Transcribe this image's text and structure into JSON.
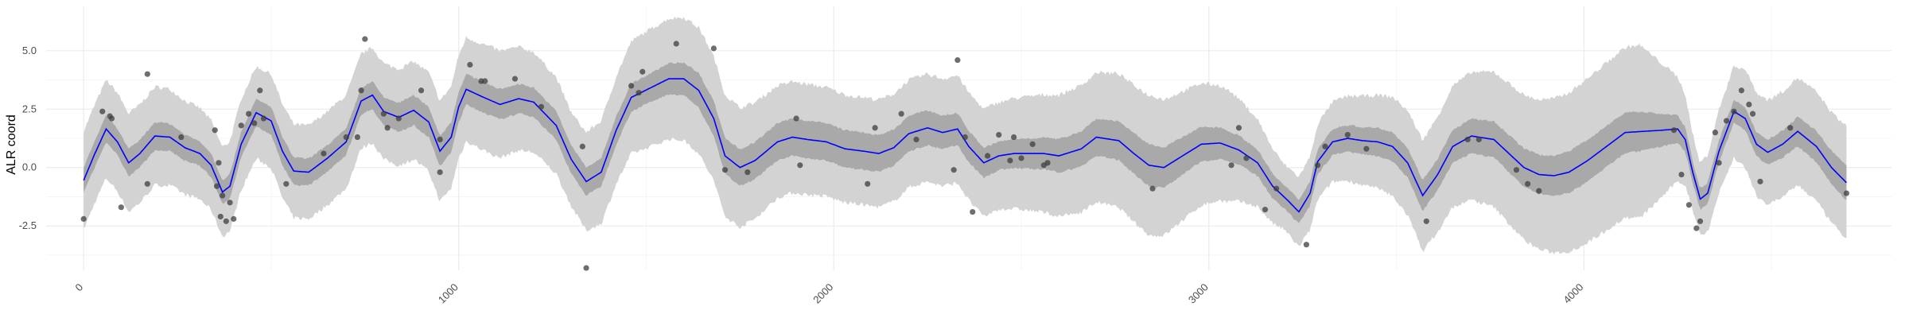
{
  "chart_data": {
    "type": "scatter",
    "title": "",
    "xlabel": "",
    "ylabel": "ALR coord",
    "xlim": [
      -100,
      4820
    ],
    "ylim": [
      -4.4,
      6.9
    ],
    "x_ticks": [
      0,
      1000,
      2000,
      3000,
      4000
    ],
    "x_tick_labels": [
      "0",
      "1000",
      "2000",
      "3000",
      "4000"
    ],
    "y_ticks": [
      -2.5,
      0.0,
      2.5,
      5.0
    ],
    "y_tick_labels": [
      "-2.5",
      "0.0",
      "2.5",
      "5.0"
    ],
    "grid": true,
    "legend": "none",
    "colors": {
      "points": "#3d3d3d",
      "mean_line": "#0000ff",
      "inner_band": "#a9a9a9",
      "outer_band": "#d3d3d3",
      "grid_major": "#ebebeb",
      "grid_minor": "#f5f5f5"
    },
    "points": [
      {
        "x": 0,
        "y": -2.2
      },
      {
        "x": 50,
        "y": 2.4
      },
      {
        "x": 70,
        "y": 2.2
      },
      {
        "x": 75,
        "y": 2.1
      },
      {
        "x": 100,
        "y": -1.7
      },
      {
        "x": 170,
        "y": 4.0
      },
      {
        "x": 170,
        "y": -0.7
      },
      {
        "x": 260,
        "y": 1.3
      },
      {
        "x": 350,
        "y": 1.6
      },
      {
        "x": 355,
        "y": -0.8
      },
      {
        "x": 360,
        "y": 0.2
      },
      {
        "x": 365,
        "y": -2.1
      },
      {
        "x": 370,
        "y": -1.2
      },
      {
        "x": 380,
        "y": -2.3
      },
      {
        "x": 390,
        "y": -1.5
      },
      {
        "x": 400,
        "y": -2.2
      },
      {
        "x": 420,
        "y": 1.8
      },
      {
        "x": 440,
        "y": 2.3
      },
      {
        "x": 455,
        "y": 1.9
      },
      {
        "x": 470,
        "y": 3.3
      },
      {
        "x": 480,
        "y": 2.1
      },
      {
        "x": 540,
        "y": -0.7
      },
      {
        "x": 640,
        "y": 0.6
      },
      {
        "x": 700,
        "y": 1.3
      },
      {
        "x": 730,
        "y": 1.3
      },
      {
        "x": 740,
        "y": 3.3
      },
      {
        "x": 750,
        "y": 5.5
      },
      {
        "x": 800,
        "y": 2.3
      },
      {
        "x": 810,
        "y": 1.7
      },
      {
        "x": 840,
        "y": 2.1
      },
      {
        "x": 900,
        "y": 3.3
      },
      {
        "x": 950,
        "y": 1.2
      },
      {
        "x": 950,
        "y": -0.2
      },
      {
        "x": 1030,
        "y": 4.4
      },
      {
        "x": 1060,
        "y": 3.7
      },
      {
        "x": 1070,
        "y": 3.7
      },
      {
        "x": 1150,
        "y": 3.8
      },
      {
        "x": 1220,
        "y": 2.6
      },
      {
        "x": 1330,
        "y": 0.9
      },
      {
        "x": 1340,
        "y": -4.3
      },
      {
        "x": 1460,
        "y": 3.5
      },
      {
        "x": 1480,
        "y": 3.2
      },
      {
        "x": 1490,
        "y": 4.1
      },
      {
        "x": 1580,
        "y": 5.3
      },
      {
        "x": 1680,
        "y": 5.1
      },
      {
        "x": 1710,
        "y": -0.1
      },
      {
        "x": 1770,
        "y": -0.2
      },
      {
        "x": 1900,
        "y": 2.1
      },
      {
        "x": 1910,
        "y": 0.1
      },
      {
        "x": 2090,
        "y": -0.7
      },
      {
        "x": 2110,
        "y": 1.7
      },
      {
        "x": 2180,
        "y": 2.3
      },
      {
        "x": 2220,
        "y": 1.2
      },
      {
        "x": 2320,
        "y": -0.1
      },
      {
        "x": 2330,
        "y": 4.6
      },
      {
        "x": 2350,
        "y": 1.3
      },
      {
        "x": 2370,
        "y": -1.9
      },
      {
        "x": 2410,
        "y": 0.5
      },
      {
        "x": 2440,
        "y": 1.4
      },
      {
        "x": 2470,
        "y": 0.3
      },
      {
        "x": 2480,
        "y": 1.3
      },
      {
        "x": 2500,
        "y": 0.4
      },
      {
        "x": 2530,
        "y": 1.0
      },
      {
        "x": 2560,
        "y": 0.1
      },
      {
        "x": 2570,
        "y": 0.2
      },
      {
        "x": 2850,
        "y": -0.9
      },
      {
        "x": 3060,
        "y": 0.1
      },
      {
        "x": 3080,
        "y": 1.7
      },
      {
        "x": 3100,
        "y": 0.4
      },
      {
        "x": 3150,
        "y": -1.8
      },
      {
        "x": 3180,
        "y": -0.9
      },
      {
        "x": 3260,
        "y": -3.3
      },
      {
        "x": 3290,
        "y": 0.1
      },
      {
        "x": 3310,
        "y": 0.9
      },
      {
        "x": 3370,
        "y": 1.4
      },
      {
        "x": 3420,
        "y": 0.8
      },
      {
        "x": 3580,
        "y": -2.3
      },
      {
        "x": 3690,
        "y": 1.2
      },
      {
        "x": 3720,
        "y": 1.2
      },
      {
        "x": 3820,
        "y": -0.1
      },
      {
        "x": 3850,
        "y": -0.7
      },
      {
        "x": 3880,
        "y": -1.0
      },
      {
        "x": 4240,
        "y": 1.6
      },
      {
        "x": 4260,
        "y": -0.3
      },
      {
        "x": 4280,
        "y": -1.6
      },
      {
        "x": 4300,
        "y": -2.6
      },
      {
        "x": 4310,
        "y": -2.3
      },
      {
        "x": 4350,
        "y": 1.5
      },
      {
        "x": 4360,
        "y": 0.2
      },
      {
        "x": 4380,
        "y": 2.0
      },
      {
        "x": 4400,
        "y": 2.4
      },
      {
        "x": 4420,
        "y": 3.3
      },
      {
        "x": 4440,
        "y": 2.7
      },
      {
        "x": 4450,
        "y": 2.3
      },
      {
        "x": 4470,
        "y": -0.6
      },
      {
        "x": 4550,
        "y": 1.7
      },
      {
        "x": 4700,
        "y": -1.1
      }
    ],
    "mean_curve": [
      [
        0,
        -0.55
      ],
      [
        30,
        0.6
      ],
      [
        60,
        1.65
      ],
      [
        90,
        1.1
      ],
      [
        120,
        0.2
      ],
      [
        150,
        0.6
      ],
      [
        190,
        1.35
      ],
      [
        230,
        1.3
      ],
      [
        270,
        0.85
      ],
      [
        310,
        0.6
      ],
      [
        340,
        0.1
      ],
      [
        370,
        -1.05
      ],
      [
        390,
        -0.8
      ],
      [
        420,
        1.0
      ],
      [
        460,
        2.35
      ],
      [
        500,
        2.0
      ],
      [
        530,
        0.7
      ],
      [
        560,
        -0.15
      ],
      [
        600,
        -0.2
      ],
      [
        650,
        0.4
      ],
      [
        700,
        1.1
      ],
      [
        740,
        2.85
      ],
      [
        770,
        3.1
      ],
      [
        800,
        2.4
      ],
      [
        840,
        2.15
      ],
      [
        880,
        2.45
      ],
      [
        920,
        1.95
      ],
      [
        950,
        0.7
      ],
      [
        980,
        1.3
      ],
      [
        1000,
        2.6
      ],
      [
        1020,
        3.35
      ],
      [
        1060,
        3.05
      ],
      [
        1110,
        2.7
      ],
      [
        1160,
        2.95
      ],
      [
        1200,
        2.8
      ],
      [
        1260,
        1.8
      ],
      [
        1300,
        0.35
      ],
      [
        1340,
        -0.6
      ],
      [
        1380,
        -0.2
      ],
      [
        1420,
        1.6
      ],
      [
        1460,
        3.0
      ],
      [
        1510,
        3.4
      ],
      [
        1560,
        3.8
      ],
      [
        1600,
        3.8
      ],
      [
        1640,
        3.3
      ],
      [
        1680,
        2.1
      ],
      [
        1710,
        0.5
      ],
      [
        1750,
        0.0
      ],
      [
        1790,
        0.3
      ],
      [
        1850,
        1.1
      ],
      [
        1890,
        1.3
      ],
      [
        1930,
        1.2
      ],
      [
        1980,
        1.1
      ],
      [
        2030,
        0.8
      ],
      [
        2080,
        0.7
      ],
      [
        2120,
        0.6
      ],
      [
        2160,
        0.85
      ],
      [
        2200,
        1.45
      ],
      [
        2250,
        1.7
      ],
      [
        2290,
        1.5
      ],
      [
        2330,
        1.65
      ],
      [
        2360,
        0.9
      ],
      [
        2400,
        0.2
      ],
      [
        2440,
        0.5
      ],
      [
        2480,
        0.6
      ],
      [
        2520,
        0.6
      ],
      [
        2560,
        0.6
      ],
      [
        2600,
        0.5
      ],
      [
        2660,
        0.8
      ],
      [
        2700,
        1.3
      ],
      [
        2760,
        1.15
      ],
      [
        2800,
        0.6
      ],
      [
        2840,
        0.1
      ],
      [
        2880,
        0.0
      ],
      [
        2930,
        0.5
      ],
      [
        2980,
        1.0
      ],
      [
        3030,
        1.05
      ],
      [
        3080,
        0.75
      ],
      [
        3130,
        0.2
      ],
      [
        3170,
        -0.8
      ],
      [
        3210,
        -1.4
      ],
      [
        3240,
        -1.9
      ],
      [
        3270,
        -1.1
      ],
      [
        3290,
        0.25
      ],
      [
        3330,
        1.1
      ],
      [
        3370,
        1.25
      ],
      [
        3410,
        1.15
      ],
      [
        3450,
        1.1
      ],
      [
        3490,
        0.9
      ],
      [
        3530,
        0.2
      ],
      [
        3570,
        -1.2
      ],
      [
        3610,
        -0.3
      ],
      [
        3650,
        0.9
      ],
      [
        3700,
        1.35
      ],
      [
        3760,
        1.2
      ],
      [
        3800,
        0.6
      ],
      [
        3840,
        0.0
      ],
      [
        3880,
        -0.3
      ],
      [
        3920,
        -0.35
      ],
      [
        3960,
        -0.2
      ],
      [
        4010,
        0.3
      ],
      [
        4060,
        0.9
      ],
      [
        4110,
        1.5
      ],
      [
        4160,
        1.55
      ],
      [
        4210,
        1.6
      ],
      [
        4250,
        1.65
      ],
      [
        4270,
        1.2
      ],
      [
        4290,
        -0.2
      ],
      [
        4310,
        -1.35
      ],
      [
        4330,
        -1.1
      ],
      [
        4360,
        0.7
      ],
      [
        4400,
        2.4
      ],
      [
        4430,
        2.1
      ],
      [
        4460,
        1.0
      ],
      [
        4490,
        0.65
      ],
      [
        4530,
        1.0
      ],
      [
        4570,
        1.55
      ],
      [
        4620,
        0.9
      ],
      [
        4660,
        0.0
      ],
      [
        4700,
        -0.65
      ]
    ],
    "inner_band_half_width": [
      [
        0,
        0.55
      ],
      [
        200,
        0.6
      ],
      [
        350,
        0.5
      ],
      [
        500,
        0.6
      ],
      [
        700,
        0.55
      ],
      [
        900,
        0.65
      ],
      [
        1100,
        0.65
      ],
      [
        1300,
        0.6
      ],
      [
        1500,
        0.6
      ],
      [
        1650,
        0.75
      ],
      [
        1850,
        0.8
      ],
      [
        2050,
        0.8
      ],
      [
        2250,
        0.75
      ],
      [
        2450,
        0.6
      ],
      [
        2650,
        0.75
      ],
      [
        2850,
        0.9
      ],
      [
        3050,
        0.65
      ],
      [
        3200,
        0.5
      ],
      [
        3450,
        0.6
      ],
      [
        3650,
        0.7
      ],
      [
        3800,
        0.8
      ],
      [
        4000,
        0.9
      ],
      [
        4150,
        0.85
      ],
      [
        4300,
        0.45
      ],
      [
        4450,
        0.5
      ],
      [
        4700,
        0.75
      ]
    ],
    "outer_band_half_width": [
      [
        0,
        2.1
      ],
      [
        200,
        2.1
      ],
      [
        350,
        1.9
      ],
      [
        500,
        2.0
      ],
      [
        700,
        2.0
      ],
      [
        900,
        2.1
      ],
      [
        1100,
        2.3
      ],
      [
        1300,
        2.0
      ],
      [
        1500,
        2.5
      ],
      [
        1650,
        2.7
      ],
      [
        1850,
        2.4
      ],
      [
        2050,
        2.3
      ],
      [
        2250,
        2.3
      ],
      [
        2450,
        2.3
      ],
      [
        2650,
        2.7
      ],
      [
        2850,
        3.0
      ],
      [
        3050,
        2.4
      ],
      [
        3200,
        1.4
      ],
      [
        3450,
        2.0
      ],
      [
        3650,
        2.6
      ],
      [
        3800,
        3.0
      ],
      [
        4000,
        3.5
      ],
      [
        4150,
        3.7
      ],
      [
        4300,
        1.5
      ],
      [
        4450,
        2.2
      ],
      [
        4700,
        2.4
      ]
    ]
  }
}
